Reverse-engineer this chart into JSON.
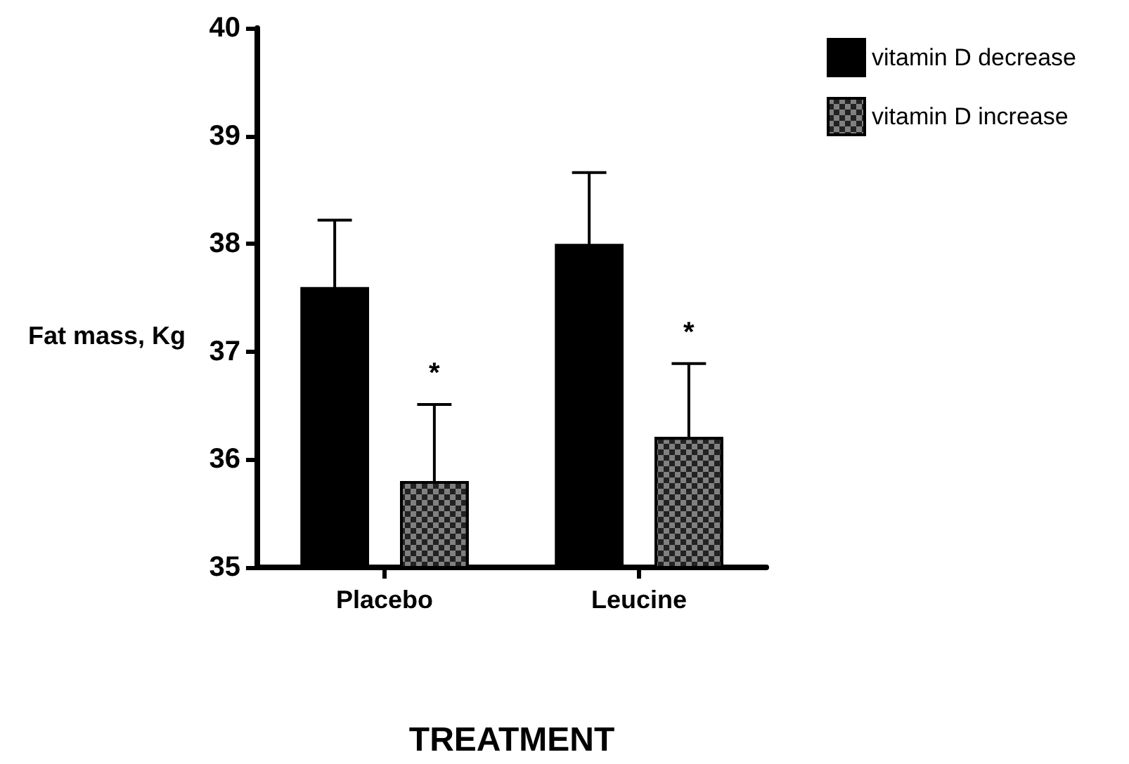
{
  "chart_data": {
    "type": "bar",
    "xlabel": "TREATMENT",
    "ylabel": "Fat mass, Kg",
    "categories": [
      "Placebo",
      "Leucine"
    ],
    "series": [
      {
        "name": "vitamin D decrease",
        "color": "#000000",
        "values": [
          37.6,
          38.0
        ],
        "errors": [
          0.62,
          0.66
        ]
      },
      {
        "name": "vitamin D increase",
        "color": "#808080",
        "values": [
          35.8,
          36.21
        ],
        "errors": [
          0.71,
          0.68
        ]
      }
    ],
    "ylim": [
      35,
      40
    ],
    "yticks": [
      35,
      36,
      37,
      38,
      39,
      40
    ],
    "grid": false,
    "legend": "top right",
    "annotations": [
      "*",
      "*"
    ]
  }
}
